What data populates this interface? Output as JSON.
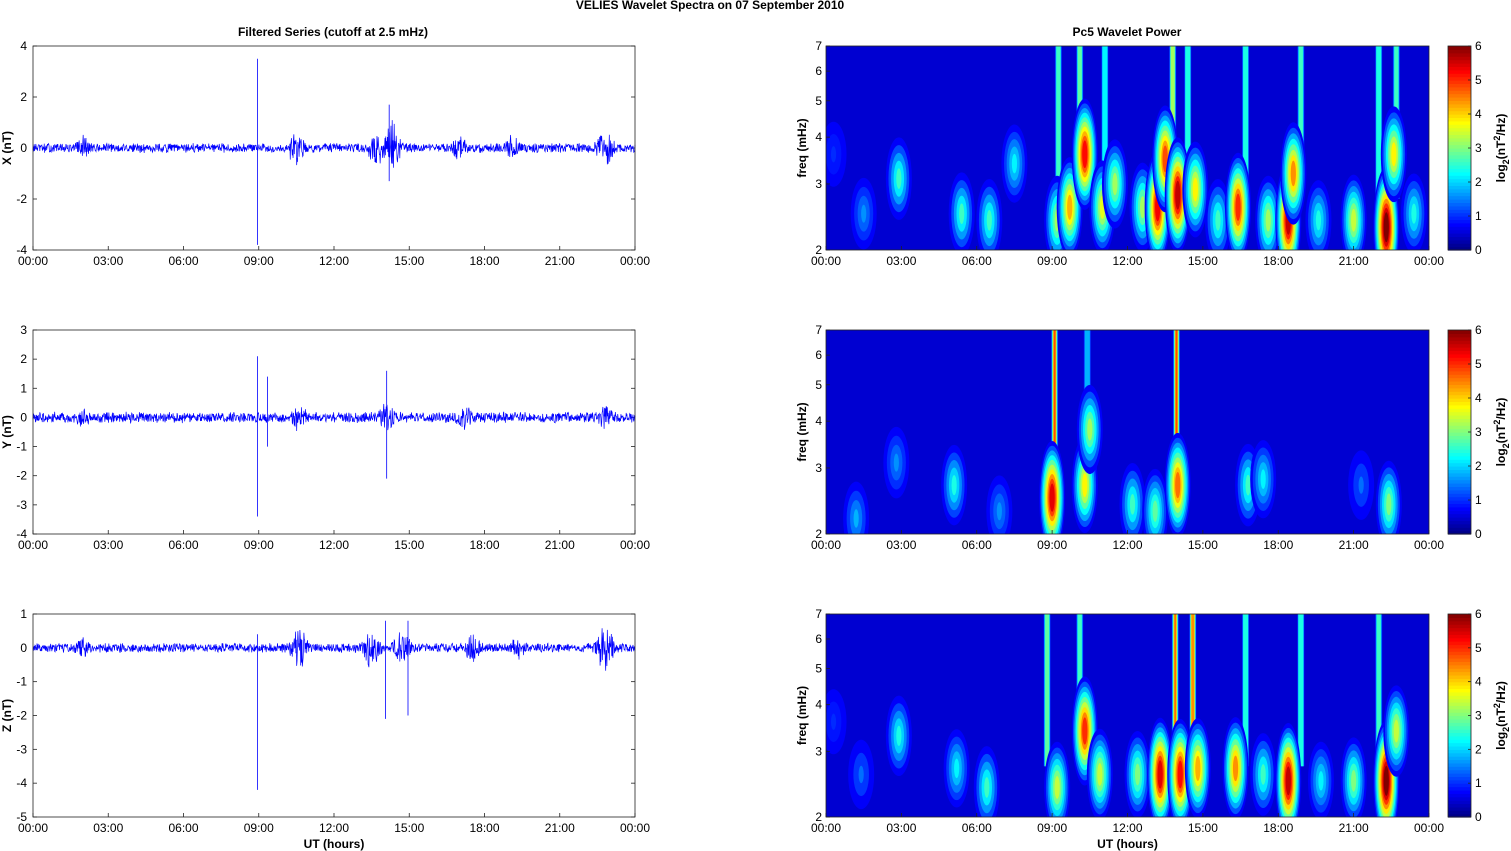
{
  "figure": {
    "title": "VELIES Wavelet Spectra on 07 September 2010",
    "left_title": "Filtered Series (cutoff at 2.5 mHz)",
    "right_title": "Pc5 Wavelet Power"
  },
  "chart_data": [
    {
      "type": "line",
      "panel": "x-series",
      "ylabel": "X (nT)",
      "xlabel": "",
      "ylim": [
        -4,
        4
      ],
      "yticks": [
        "4",
        "2",
        "0",
        "-2",
        "-4"
      ],
      "xticks": [
        "00:00",
        "03:00",
        "06:00",
        "09:00",
        "12:00",
        "15:00",
        "18:00",
        "21:00",
        "00:00"
      ],
      "xlim_hours": [
        0,
        24
      ],
      "color": "#0000ff",
      "series": [
        {
          "name": "",
          "background_amplitude_nT": 0.2,
          "bursts": [
            {
              "t_hours": 2.0,
              "amp_nT": 0.6
            },
            {
              "t_hours": 10.5,
              "amp_nT": 0.8
            },
            {
              "t_hours": 13.7,
              "amp_nT": 0.9
            },
            {
              "t_hours": 14.3,
              "amp_nT": 1.2
            },
            {
              "t_hours": 17.0,
              "amp_nT": 0.6
            },
            {
              "t_hours": 19.1,
              "amp_nT": 0.6
            },
            {
              "t_hours": 22.8,
              "amp_nT": 1.0
            }
          ],
          "spikes": [
            {
              "t_hours": 8.95,
              "max_nT": 3.5,
              "min_nT": -3.8
            },
            {
              "t_hours": 14.2,
              "max_nT": 1.7,
              "min_nT": -1.3
            }
          ]
        }
      ]
    },
    {
      "type": "line",
      "panel": "y-series",
      "ylabel": "Y (nT)",
      "xlabel": "",
      "ylim": [
        -4,
        3
      ],
      "yticks": [
        "3",
        "2",
        "1",
        "0",
        "-1",
        "-2",
        "-3",
        "-4"
      ],
      "xticks": [
        "00:00",
        "03:00",
        "06:00",
        "09:00",
        "12:00",
        "15:00",
        "18:00",
        "21:00",
        "00:00"
      ],
      "xlim_hours": [
        0,
        24
      ],
      "color": "#0000ff",
      "series": [
        {
          "name": "",
          "background_amplitude_nT": 0.2,
          "bursts": [
            {
              "t_hours": 2.0,
              "amp_nT": 0.4
            },
            {
              "t_hours": 10.6,
              "amp_nT": 0.6
            },
            {
              "t_hours": 14.1,
              "amp_nT": 0.6
            },
            {
              "t_hours": 17.2,
              "amp_nT": 0.6
            },
            {
              "t_hours": 22.8,
              "amp_nT": 0.5
            }
          ],
          "spikes": [
            {
              "t_hours": 8.95,
              "max_nT": 2.1,
              "min_nT": -3.4
            },
            {
              "t_hours": 9.35,
              "max_nT": 1.4,
              "min_nT": -1.0
            },
            {
              "t_hours": 14.1,
              "max_nT": 1.6,
              "min_nT": -2.1
            }
          ]
        }
      ]
    },
    {
      "type": "line",
      "panel": "z-series",
      "ylabel": "Z (nT)",
      "xlabel": "UT (hours)",
      "ylim": [
        -5,
        1
      ],
      "yticks": [
        "1",
        "0",
        "-1",
        "-2",
        "-3",
        "-4",
        "-5"
      ],
      "xticks": [
        "00:00",
        "03:00",
        "06:00",
        "09:00",
        "12:00",
        "15:00",
        "18:00",
        "21:00",
        "00:00"
      ],
      "xlim_hours": [
        0,
        24
      ],
      "color": "#0000ff",
      "series": [
        {
          "name": "",
          "background_amplitude_nT": 0.15,
          "bursts": [
            {
              "t_hours": 2.0,
              "amp_nT": 0.4
            },
            {
              "t_hours": 10.6,
              "amp_nT": 0.7
            },
            {
              "t_hours": 13.5,
              "amp_nT": 0.7
            },
            {
              "t_hours": 14.7,
              "amp_nT": 0.7
            },
            {
              "t_hours": 17.5,
              "amp_nT": 0.5
            },
            {
              "t_hours": 19.3,
              "amp_nT": 0.4
            },
            {
              "t_hours": 22.8,
              "amp_nT": 0.8
            }
          ],
          "spikes": [
            {
              "t_hours": 8.95,
              "max_nT": 0.4,
              "min_nT": -4.2
            },
            {
              "t_hours": 14.05,
              "max_nT": 0.8,
              "min_nT": -2.1
            },
            {
              "t_hours": 14.95,
              "max_nT": 0.8,
              "min_nT": -2.0
            }
          ]
        }
      ]
    },
    {
      "type": "heatmap",
      "panel": "x-wavelet",
      "ylabel": "freq (mHz)",
      "xlabel": "",
      "y_scale": "log",
      "ylim_mHz": [
        2,
        7
      ],
      "yticks": [
        "7",
        "6",
        "5",
        "4",
        "3",
        "2"
      ],
      "xticks": [
        "00:00",
        "03:00",
        "06:00",
        "09:00",
        "12:00",
        "15:00",
        "18:00",
        "21:00",
        "00:00"
      ],
      "colorbar": {
        "label": "log2(nT^2/Hz)",
        "range": [
          0,
          6
        ],
        "ticks": [
          "6",
          "5",
          "4",
          "3",
          "2",
          "1",
          "0"
        ],
        "colormap": "jet"
      },
      "blobs": [
        {
          "t_hours": 0.3,
          "f_mHz": 3.6,
          "power": 1.0
        },
        {
          "t_hours": 1.5,
          "f_mHz": 2.5,
          "power": 1.6
        },
        {
          "t_hours": 2.9,
          "f_mHz": 3.1,
          "power": 2.6
        },
        {
          "t_hours": 5.4,
          "f_mHz": 2.5,
          "power": 2.6
        },
        {
          "t_hours": 6.5,
          "f_mHz": 2.4,
          "power": 2.6
        },
        {
          "t_hours": 7.5,
          "f_mHz": 3.4,
          "power": 2.2
        },
        {
          "t_hours": 9.2,
          "f_mHz": 2.4,
          "power": 3.2
        },
        {
          "t_hours": 9.7,
          "f_mHz": 2.6,
          "power": 4.2
        },
        {
          "t_hours": 10.3,
          "f_mHz": 3.6,
          "power": 5.2
        },
        {
          "t_hours": 11.0,
          "f_mHz": 2.6,
          "power": 3.6
        },
        {
          "t_hours": 11.5,
          "f_mHz": 3.0,
          "power": 3.2
        },
        {
          "t_hours": 12.6,
          "f_mHz": 2.6,
          "power": 3.2
        },
        {
          "t_hours": 13.2,
          "f_mHz": 2.6,
          "power": 5.3
        },
        {
          "t_hours": 13.5,
          "f_mHz": 3.5,
          "power": 4.8
        },
        {
          "t_hours": 14.0,
          "f_mHz": 2.8,
          "power": 5.6
        },
        {
          "t_hours": 14.7,
          "f_mHz": 2.9,
          "power": 3.8
        },
        {
          "t_hours": 15.6,
          "f_mHz": 2.4,
          "power": 2.6
        },
        {
          "t_hours": 16.4,
          "f_mHz": 2.6,
          "power": 5.0
        },
        {
          "t_hours": 17.6,
          "f_mHz": 2.4,
          "power": 3.2
        },
        {
          "t_hours": 18.4,
          "f_mHz": 2.4,
          "power": 5.6
        },
        {
          "t_hours": 18.6,
          "f_mHz": 3.2,
          "power": 4.4
        },
        {
          "t_hours": 19.6,
          "f_mHz": 2.4,
          "power": 2.4
        },
        {
          "t_hours": 21.0,
          "f_mHz": 2.4,
          "power": 3.4
        },
        {
          "t_hours": 22.3,
          "f_mHz": 2.3,
          "power": 6.0
        },
        {
          "t_hours": 22.6,
          "f_mHz": 3.6,
          "power": 3.8
        },
        {
          "t_hours": 23.4,
          "f_mHz": 2.5,
          "power": 2.4
        }
      ],
      "streaks": [
        {
          "t_hours": 9.25,
          "power": 2.6
        },
        {
          "t_hours": 10.1,
          "power": 2.8
        },
        {
          "t_hours": 11.1,
          "power": 2.2
        },
        {
          "t_hours": 13.8,
          "power": 3.2
        },
        {
          "t_hours": 14.4,
          "power": 2.4
        },
        {
          "t_hours": 16.7,
          "power": 2.4
        },
        {
          "t_hours": 18.9,
          "power": 2.6
        },
        {
          "t_hours": 22.0,
          "power": 2.4
        },
        {
          "t_hours": 22.7,
          "power": 2.6
        }
      ]
    },
    {
      "type": "heatmap",
      "panel": "y-wavelet",
      "ylabel": "freq (mHz)",
      "xlabel": "",
      "y_scale": "log",
      "ylim_mHz": [
        2,
        7
      ],
      "yticks": [
        "7",
        "6",
        "5",
        "4",
        "3",
        "2"
      ],
      "xticks": [
        "00:00",
        "03:00",
        "06:00",
        "09:00",
        "12:00",
        "15:00",
        "18:00",
        "21:00",
        "00:00"
      ],
      "colorbar": {
        "label": "log2(nT^2/Hz)",
        "range": [
          0,
          6
        ],
        "ticks": [
          "6",
          "5",
          "4",
          "3",
          "2",
          "1",
          "0"
        ],
        "colormap": "jet"
      },
      "blobs": [
        {
          "t_hours": 1.2,
          "f_mHz": 2.2,
          "power": 1.8
        },
        {
          "t_hours": 2.8,
          "f_mHz": 3.1,
          "power": 1.6
        },
        {
          "t_hours": 5.1,
          "f_mHz": 2.7,
          "power": 2.4
        },
        {
          "t_hours": 6.9,
          "f_mHz": 2.3,
          "power": 1.6
        },
        {
          "t_hours": 9.0,
          "f_mHz": 2.5,
          "power": 5.4
        },
        {
          "t_hours": 10.3,
          "f_mHz": 2.7,
          "power": 3.8
        },
        {
          "t_hours": 10.5,
          "f_mHz": 3.8,
          "power": 3.2
        },
        {
          "t_hours": 12.2,
          "f_mHz": 2.4,
          "power": 2.6
        },
        {
          "t_hours": 13.1,
          "f_mHz": 2.3,
          "power": 2.8
        },
        {
          "t_hours": 14.0,
          "f_mHz": 2.7,
          "power": 4.6
        },
        {
          "t_hours": 16.8,
          "f_mHz": 2.7,
          "power": 2.6
        },
        {
          "t_hours": 17.4,
          "f_mHz": 2.8,
          "power": 2.2
        },
        {
          "t_hours": 21.3,
          "f_mHz": 2.7,
          "power": 1.4
        },
        {
          "t_hours": 22.4,
          "f_mHz": 2.4,
          "power": 3.0
        }
      ],
      "streaks": [
        {
          "t_hours": 9.1,
          "power": 4.8
        },
        {
          "t_hours": 13.95,
          "power": 4.8
        },
        {
          "t_hours": 10.4,
          "power": 1.8
        }
      ]
    },
    {
      "type": "heatmap",
      "panel": "z-wavelet",
      "ylabel": "freq (mHz)",
      "xlabel": "UT (hours)",
      "y_scale": "log",
      "ylim_mHz": [
        2,
        7
      ],
      "yticks": [
        "7",
        "6",
        "5",
        "4",
        "3",
        "2"
      ],
      "xticks": [
        "00:00",
        "03:00",
        "06:00",
        "09:00",
        "12:00",
        "15:00",
        "18:00",
        "21:00",
        "00:00"
      ],
      "colorbar": {
        "label": "log2(nT^2/Hz)",
        "range": [
          0,
          6
        ],
        "ticks": [
          "6",
          "5",
          "4",
          "3",
          "2",
          "1",
          "0"
        ],
        "colormap": "jet"
      },
      "blobs": [
        {
          "t_hours": 0.3,
          "f_mHz": 3.6,
          "power": 1.0
        },
        {
          "t_hours": 1.4,
          "f_mHz": 2.6,
          "power": 1.4
        },
        {
          "t_hours": 2.9,
          "f_mHz": 3.3,
          "power": 2.4
        },
        {
          "t_hours": 5.2,
          "f_mHz": 2.7,
          "power": 2.2
        },
        {
          "t_hours": 6.4,
          "f_mHz": 2.4,
          "power": 2.6
        },
        {
          "t_hours": 9.2,
          "f_mHz": 2.4,
          "power": 3.4
        },
        {
          "t_hours": 10.3,
          "f_mHz": 3.4,
          "power": 5.0
        },
        {
          "t_hours": 10.9,
          "f_mHz": 2.6,
          "power": 3.4
        },
        {
          "t_hours": 12.4,
          "f_mHz": 2.6,
          "power": 3.0
        },
        {
          "t_hours": 13.3,
          "f_mHz": 2.6,
          "power": 5.4
        },
        {
          "t_hours": 14.1,
          "f_mHz": 2.6,
          "power": 5.2
        },
        {
          "t_hours": 14.8,
          "f_mHz": 2.7,
          "power": 4.2
        },
        {
          "t_hours": 16.3,
          "f_mHz": 2.7,
          "power": 4.4
        },
        {
          "t_hours": 17.4,
          "f_mHz": 2.6,
          "power": 2.6
        },
        {
          "t_hours": 18.4,
          "f_mHz": 2.5,
          "power": 5.6
        },
        {
          "t_hours": 19.7,
          "f_mHz": 2.5,
          "power": 2.2
        },
        {
          "t_hours": 21.0,
          "f_mHz": 2.5,
          "power": 3.0
        },
        {
          "t_hours": 22.3,
          "f_mHz": 2.5,
          "power": 6.0
        },
        {
          "t_hours": 22.7,
          "f_mHz": 3.4,
          "power": 3.4
        }
      ],
      "streaks": [
        {
          "t_hours": 8.8,
          "power": 2.8
        },
        {
          "t_hours": 10.1,
          "power": 2.6
        },
        {
          "t_hours": 13.9,
          "power": 4.6
        },
        {
          "t_hours": 14.6,
          "power": 4.4
        },
        {
          "t_hours": 16.7,
          "power": 2.4
        },
        {
          "t_hours": 18.9,
          "power": 2.4
        },
        {
          "t_hours": 22.0,
          "power": 2.6
        }
      ]
    }
  ]
}
